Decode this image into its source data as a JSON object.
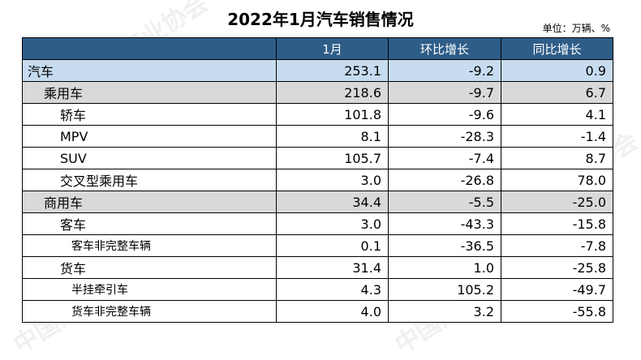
{
  "title": "2022年1月汽车销售情况",
  "unit": "单位：万辆、%",
  "watermark": "中国汽车工业协会",
  "headers": [
    "",
    "1月",
    "环比增长",
    "同比增长"
  ],
  "rows": [
    {
      "name": "汽车",
      "m1": "253.1",
      "mom": "-9.2",
      "yoy": "0.9"
    },
    {
      "name": "乘用车",
      "m1": "218.6",
      "mom": "-9.7",
      "yoy": "6.7"
    },
    {
      "name": "轿车",
      "m1": "101.8",
      "mom": "-9.6",
      "yoy": "4.1"
    },
    {
      "name": "MPV",
      "m1": "8.1",
      "mom": "-28.3",
      "yoy": "-1.4"
    },
    {
      "name": "SUV",
      "m1": "105.7",
      "mom": "-7.4",
      "yoy": "8.7"
    },
    {
      "name": "交叉型乘用车",
      "m1": "3.0",
      "mom": "-26.8",
      "yoy": "78.0"
    },
    {
      "name": "商用车",
      "m1": "34.4",
      "mom": "-5.5",
      "yoy": "-25.0"
    },
    {
      "name": "客车",
      "m1": "3.0",
      "mom": "-43.3",
      "yoy": "-15.8"
    },
    {
      "name": "客车非完整车辆",
      "m1": "0.1",
      "mom": "-36.5",
      "yoy": "-7.8"
    },
    {
      "name": "货车",
      "m1": "31.4",
      "mom": "1.0",
      "yoy": "-25.8"
    },
    {
      "name": "半挂牵引车",
      "m1": "4.3",
      "mom": "105.2",
      "yoy": "-49.7"
    },
    {
      "name": "货车非完整车辆",
      "m1": "4.0",
      "mom": "3.2",
      "yoy": "-55.8"
    }
  ]
}
